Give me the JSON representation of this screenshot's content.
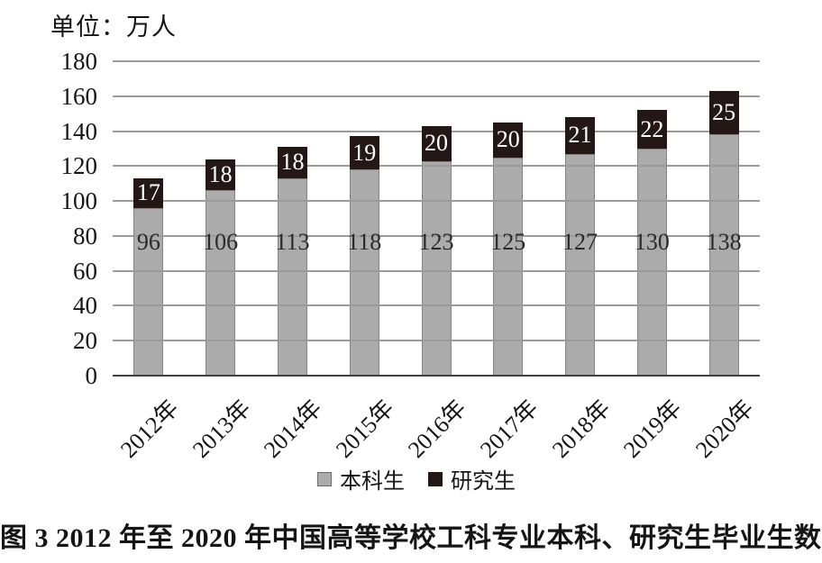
{
  "unit_label": "单位：万人",
  "caption": "图 3  2012 年至 2020 年中国高等学校工科专业本科、研究生毕业生数",
  "colors": {
    "undergrad_bar": "#ababab",
    "grad_bar": "#231815",
    "gridline": "#9b9b9b",
    "axis_line": "#3d3d3d",
    "grad_label_text": "#ffffff"
  },
  "legend": {
    "items": [
      {
        "label": "本科生",
        "color": "#ababab",
        "bordered": true
      },
      {
        "label": "研究生",
        "color": "#231815",
        "bordered": false
      }
    ]
  },
  "chart_data": {
    "type": "bar",
    "stacked": true,
    "title": "",
    "unit": "万人",
    "xlabel": "",
    "ylabel": "单位：万人",
    "categories": [
      "2012年",
      "2013年",
      "2014年",
      "2015年",
      "2016年",
      "2017年",
      "2018年",
      "2019年",
      "2020年"
    ],
    "series": [
      {
        "name": "本科生",
        "color": "#ababab",
        "values": [
          96,
          106,
          113,
          118,
          123,
          125,
          127,
          130,
          138
        ]
      },
      {
        "name": "研究生",
        "color": "#231815",
        "values": [
          17,
          18,
          18,
          19,
          20,
          20,
          21,
          22,
          25
        ]
      }
    ],
    "totals": [
      113,
      124,
      131,
      137,
      143,
      145,
      148,
      152,
      163
    ],
    "y_axis": {
      "min": 0,
      "max": 180,
      "step": 20,
      "ticks": [
        180,
        160,
        140,
        120,
        100,
        80,
        60,
        40,
        20,
        0
      ]
    },
    "grid": true,
    "gridlines_over_bars": true,
    "legend_position": "bottom",
    "caption": "图 3  2012 年至 2020 年中国高等学校工科专业本科、研究生毕业生数"
  }
}
